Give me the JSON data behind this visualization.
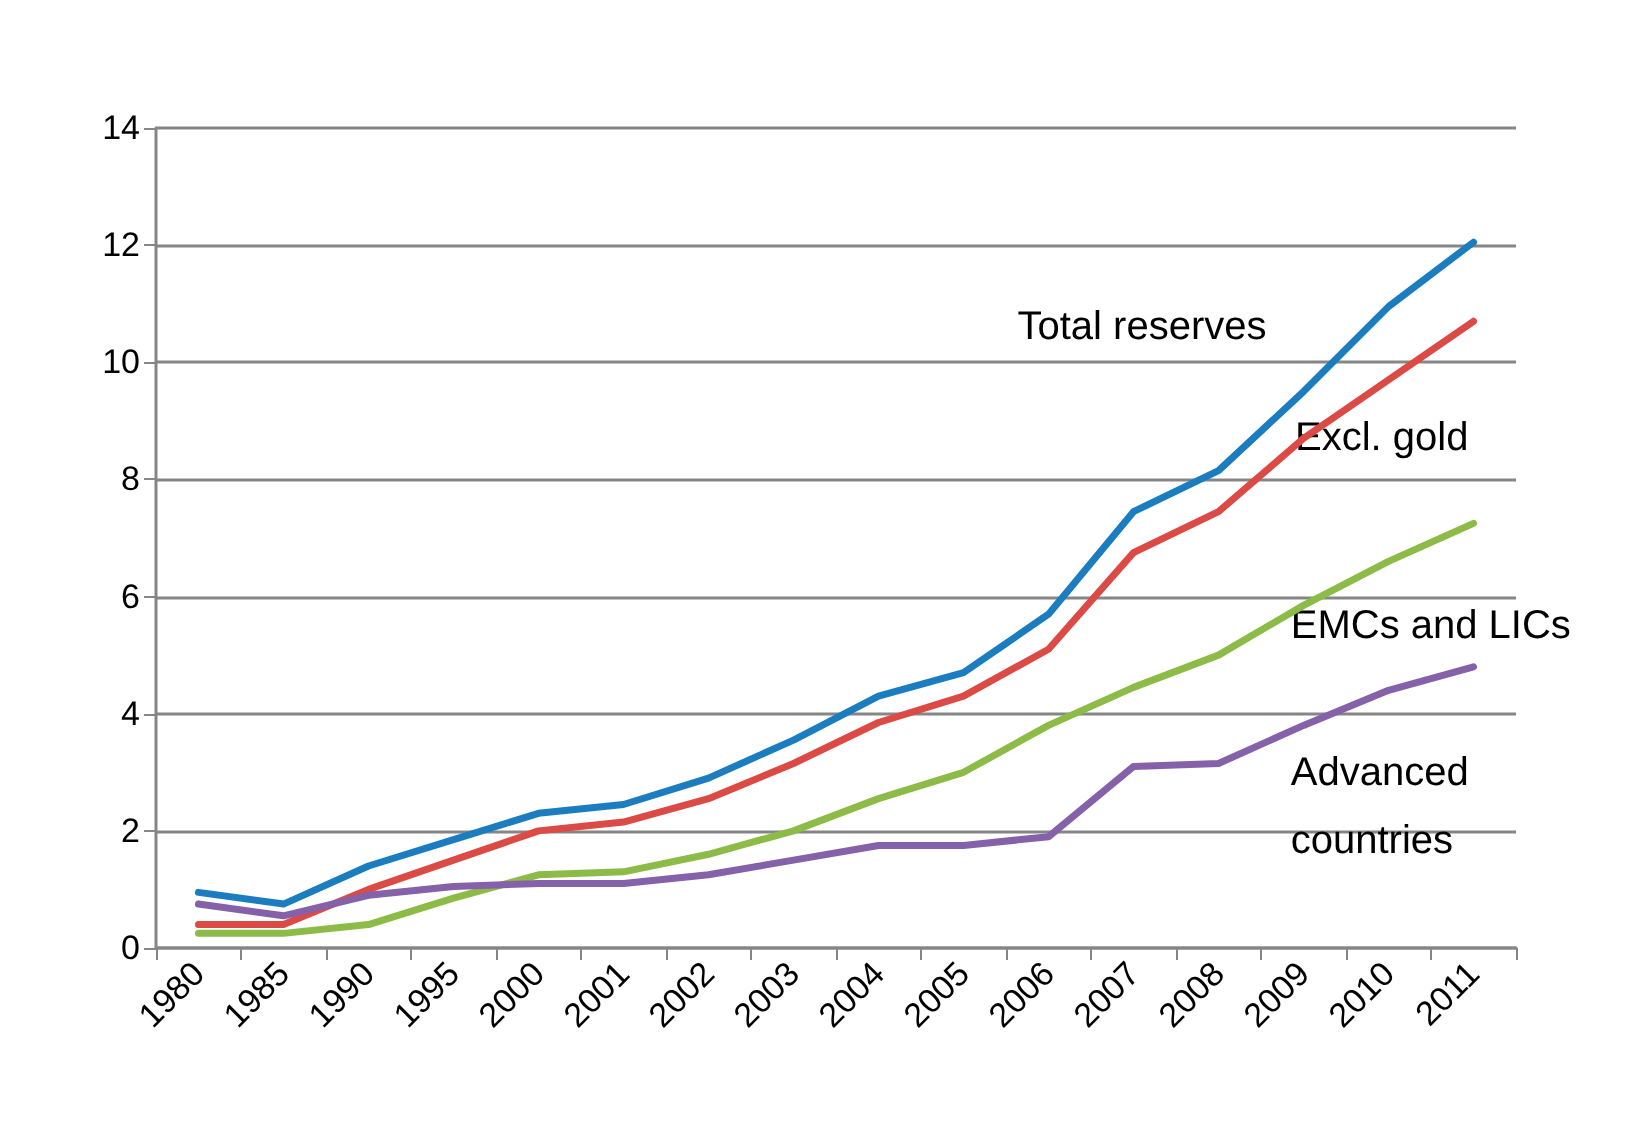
{
  "chart_data": {
    "type": "line",
    "categories": [
      "1980",
      "1985",
      "1990",
      "1995",
      "2000",
      "2001",
      "2002",
      "2003",
      "2004",
      "2005",
      "2006",
      "2007",
      "2008",
      "2009",
      "2010",
      "2011"
    ],
    "series": [
      {
        "name": "Total reserves",
        "color": "#1b7dc0",
        "values": [
          0.95,
          0.75,
          1.4,
          1.85,
          2.3,
          2.45,
          2.9,
          3.55,
          4.3,
          4.7,
          5.7,
          7.45,
          8.15,
          9.5,
          10.95,
          12.05
        ]
      },
      {
        "name": "Excl. gold",
        "color": "#db4a44",
        "values": [
          0.4,
          0.4,
          1.0,
          1.5,
          2.0,
          2.15,
          2.55,
          3.15,
          3.85,
          4.3,
          5.1,
          6.75,
          7.45,
          8.7,
          9.7,
          10.7
        ]
      },
      {
        "name": "EMCs and LICs",
        "color": "#8dbb47",
        "values": [
          0.25,
          0.25,
          0.4,
          0.85,
          1.25,
          1.3,
          1.6,
          2.0,
          2.55,
          3.0,
          3.8,
          4.45,
          5.0,
          5.85,
          6.6,
          7.25
        ]
      },
      {
        "name": "Advanced countries",
        "color": "#8461a8",
        "values": [
          0.75,
          0.55,
          0.9,
          1.05,
          1.1,
          1.1,
          1.25,
          1.5,
          1.75,
          1.75,
          1.9,
          3.1,
          3.15,
          3.8,
          4.4,
          4.8
        ]
      }
    ],
    "ylim": [
      0,
      14
    ],
    "yticks": [
      0,
      2,
      4,
      6,
      8,
      10,
      12,
      14
    ],
    "grid": "y",
    "legend": false,
    "marker": "none",
    "line_style": "solid"
  }
}
